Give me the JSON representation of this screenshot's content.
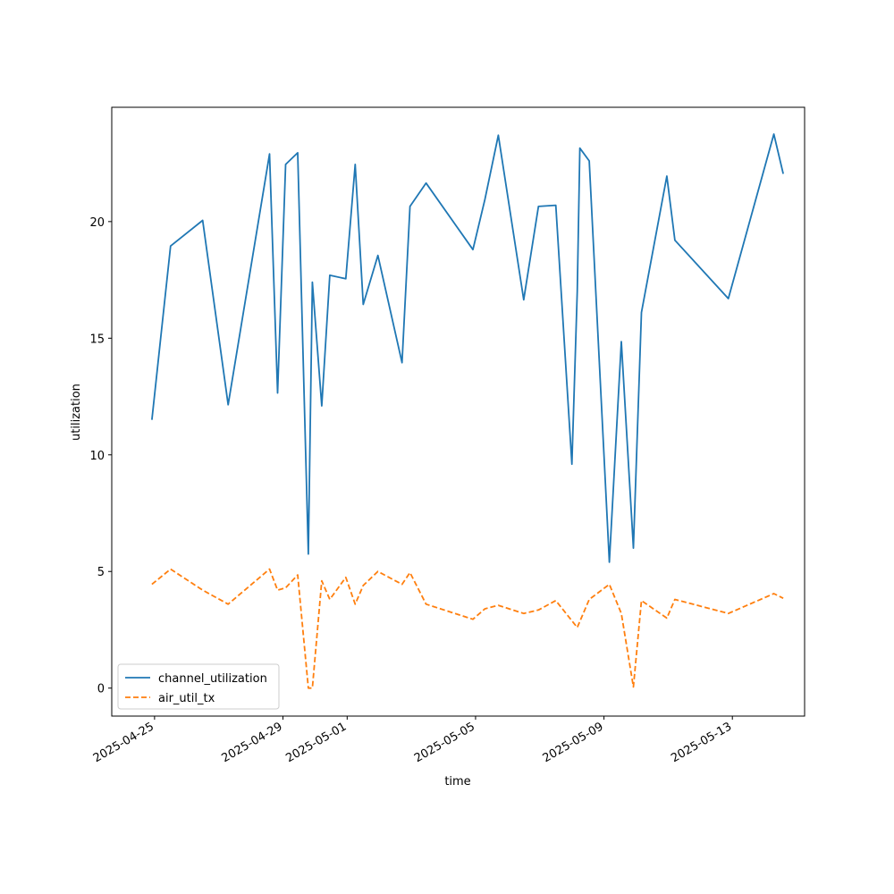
{
  "chart_data": {
    "type": "line",
    "xlabel": "time",
    "ylabel": "utilization",
    "x_tick_labels": [
      "2025-04-25",
      "2025-04-29",
      "2025-05-01",
      "2025-05-05",
      "2025-05-09",
      "2025-05-13"
    ],
    "x_tick_dates": [
      "2025-04-25",
      "2025-04-29",
      "2025-05-01",
      "2025-05-05",
      "2025-05-09",
      "2025-05-13"
    ],
    "y_tick_labels": [
      "0",
      "5",
      "10",
      "15",
      "20"
    ],
    "y_ticks": [
      0,
      5,
      10,
      15,
      20
    ],
    "xlim": [
      "2025-04-23 16:00",
      "2025-05-15 06:00"
    ],
    "ylim": [
      -1.2,
      24.9
    ],
    "grid": false,
    "legend_position": "lower-left",
    "series": [
      {
        "name": "channel_utilization",
        "color": "#1f77b4",
        "linestyle": "solid",
        "points": [
          [
            "2025-04-24 22:00",
            11.5
          ],
          [
            "2025-04-25 12:00",
            18.95
          ],
          [
            "2025-04-26 12:00",
            20.05
          ],
          [
            "2025-04-27 07:00",
            12.15
          ],
          [
            "2025-04-28 14:00",
            22.9
          ],
          [
            "2025-04-28 20:00",
            12.65
          ],
          [
            "2025-04-29 02:00",
            22.45
          ],
          [
            "2025-04-29 11:00",
            22.95
          ],
          [
            "2025-04-29 19:00",
            5.75
          ],
          [
            "2025-04-29 22:00",
            17.4
          ],
          [
            "2025-04-30 05:00",
            12.1
          ],
          [
            "2025-04-30 11:00",
            17.7
          ],
          [
            "2025-04-30 23:00",
            17.55
          ],
          [
            "2025-05-01 06:00",
            22.45
          ],
          [
            "2025-05-01 12:00",
            16.45
          ],
          [
            "2025-05-01 23:00",
            18.55
          ],
          [
            "2025-05-02 17:00",
            13.95
          ],
          [
            "2025-05-02 23:00",
            20.65
          ],
          [
            "2025-05-03 11:00",
            21.65
          ],
          [
            "2025-05-04 22:00",
            18.8
          ],
          [
            "2025-05-05 07:00",
            20.95
          ],
          [
            "2025-05-05 17:00",
            23.7
          ],
          [
            "2025-05-06 12:00",
            16.65
          ],
          [
            "2025-05-06 23:00",
            20.65
          ],
          [
            "2025-05-07 12:00",
            20.7
          ],
          [
            "2025-05-08 00:00",
            9.6
          ],
          [
            "2025-05-08 04:00",
            17.0
          ],
          [
            "2025-05-08 06:00",
            23.15
          ],
          [
            "2025-05-08 13:00",
            22.6
          ],
          [
            "2025-05-09 04:00",
            5.4
          ],
          [
            "2025-05-09 13:00",
            14.85
          ],
          [
            "2025-05-09 22:00",
            6.0
          ],
          [
            "2025-05-10 04:00",
            16.1
          ],
          [
            "2025-05-10 23:00",
            21.95
          ],
          [
            "2025-05-11 05:00",
            19.2
          ],
          [
            "2025-05-12 21:00",
            16.7
          ],
          [
            "2025-05-14 07:00",
            23.75
          ],
          [
            "2025-05-14 14:00",
            22.05
          ]
        ]
      },
      {
        "name": "air_util_tx",
        "color": "#ff7f0e",
        "linestyle": "dashed",
        "points": [
          [
            "2025-04-24 22:00",
            4.45
          ],
          [
            "2025-04-25 12:00",
            5.1
          ],
          [
            "2025-04-26 12:00",
            4.2
          ],
          [
            "2025-04-27 07:00",
            3.6
          ],
          [
            "2025-04-28 14:00",
            5.1
          ],
          [
            "2025-04-28 20:00",
            4.2
          ],
          [
            "2025-04-29 02:00",
            4.3
          ],
          [
            "2025-04-29 11:00",
            4.85
          ],
          [
            "2025-04-29 19:00",
            0.0
          ],
          [
            "2025-04-29 22:00",
            0.0
          ],
          [
            "2025-04-30 05:00",
            4.6
          ],
          [
            "2025-04-30 11:00",
            3.8
          ],
          [
            "2025-04-30 23:00",
            4.75
          ],
          [
            "2025-05-01 06:00",
            3.6
          ],
          [
            "2025-05-01 12:00",
            4.4
          ],
          [
            "2025-05-01 23:00",
            5.0
          ],
          [
            "2025-05-02 17:00",
            4.45
          ],
          [
            "2025-05-02 23:00",
            4.95
          ],
          [
            "2025-05-03 11:00",
            3.6
          ],
          [
            "2025-05-04 22:00",
            2.95
          ],
          [
            "2025-05-05 07:00",
            3.4
          ],
          [
            "2025-05-05 17:00",
            3.55
          ],
          [
            "2025-05-06 12:00",
            3.2
          ],
          [
            "2025-05-06 23:00",
            3.35
          ],
          [
            "2025-05-07 12:00",
            3.75
          ],
          [
            "2025-05-08 04:00",
            2.6
          ],
          [
            "2025-05-08 13:00",
            3.8
          ],
          [
            "2025-05-09 04:00",
            4.45
          ],
          [
            "2025-05-09 13:00",
            3.2
          ],
          [
            "2025-05-09 22:00",
            0.05
          ],
          [
            "2025-05-10 04:00",
            3.75
          ],
          [
            "2025-05-10 23:00",
            3.0
          ],
          [
            "2025-05-11 05:00",
            3.8
          ],
          [
            "2025-05-12 21:00",
            3.2
          ],
          [
            "2025-05-14 07:00",
            4.05
          ],
          [
            "2025-05-14 14:00",
            3.85
          ]
        ]
      }
    ]
  }
}
